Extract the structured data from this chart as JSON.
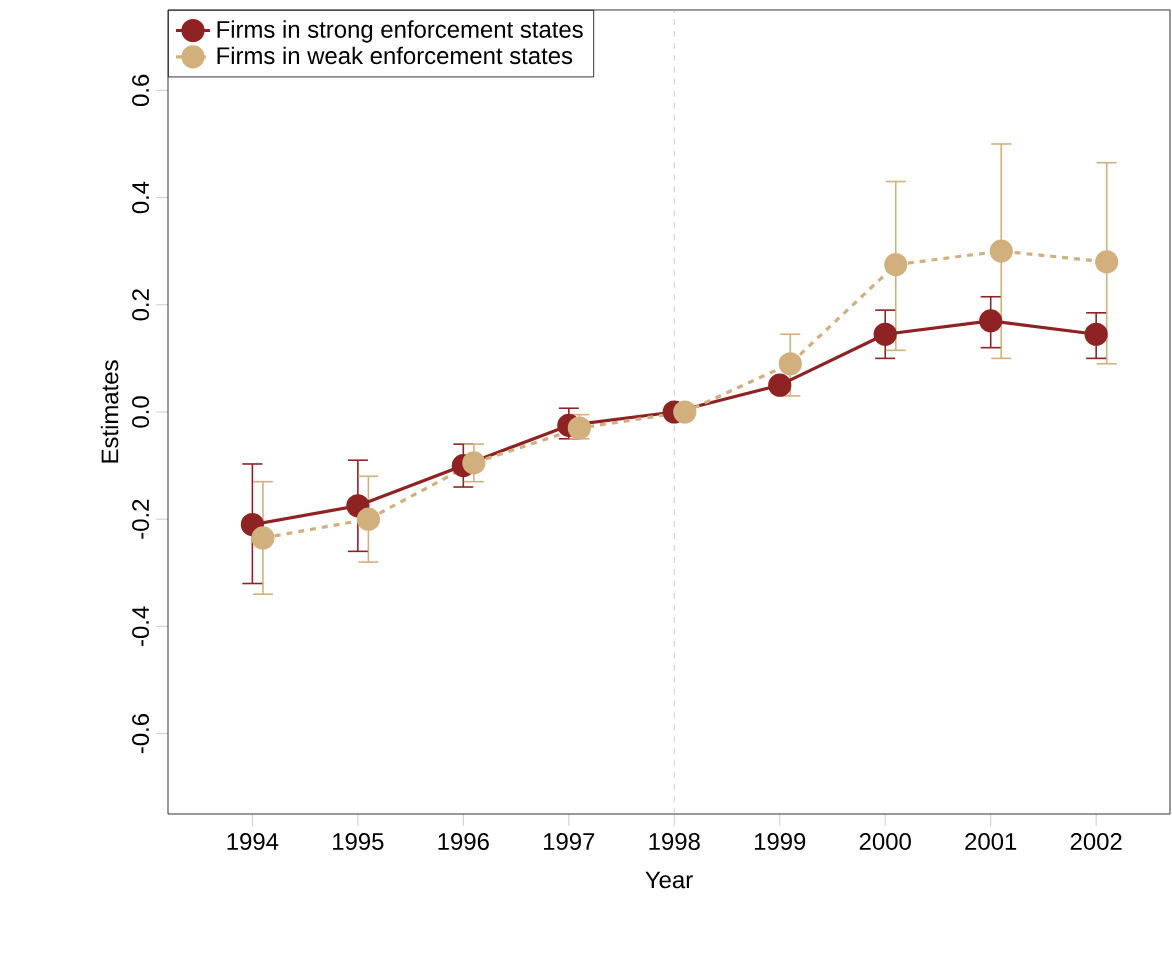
{
  "chart_data": {
    "type": "line",
    "xlabel": "Year",
    "ylabel": "Estimates",
    "x": [
      1994,
      1995,
      1996,
      1997,
      1998,
      1999,
      2000,
      2001,
      2002
    ],
    "series": [
      {
        "name": "Firms in strong enforcement states",
        "color": "#8f2323",
        "line_style": "solid",
        "values": [
          -0.21,
          -0.175,
          -0.1,
          -0.025,
          0,
          0.05,
          0.145,
          0.17,
          0.145
        ],
        "errors": [
          [
            -0.32,
            -0.097
          ],
          [
            -0.26,
            -0.09
          ],
          [
            -0.14,
            -0.06
          ],
          [
            -0.05,
            0.007
          ],
          null,
          null,
          [
            0.1,
            0.19
          ],
          [
            0.12,
            0.215
          ],
          [
            0.1,
            0.185
          ]
        ]
      },
      {
        "name": "Firms in weak enforcement states",
        "color": "#d2b07e",
        "line_style": "dashed",
        "x": [
          1994.1,
          1995.1,
          1996.1,
          1997.1,
          1998.1,
          1999.1,
          2000.1,
          2001.1,
          2002.1
        ],
        "values": [
          -0.235,
          -0.2,
          -0.095,
          -0.03,
          0,
          0.09,
          0.275,
          0.3,
          0.28
        ],
        "errors": [
          [
            -0.34,
            -0.13
          ],
          [
            -0.28,
            -0.12
          ],
          [
            -0.13,
            -0.06
          ],
          [
            -0.05,
            -0.005
          ],
          null,
          [
            0.03,
            0.145
          ],
          [
            0.115,
            0.43
          ],
          [
            0.1,
            0.5
          ],
          [
            0.09,
            0.465
          ]
        ]
      }
    ],
    "marker": "circle",
    "xlim": [
      1993.2,
      2002.7
    ],
    "xticks": [
      1994,
      1995,
      1996,
      1997,
      1998,
      1999,
      2000,
      2001,
      2002
    ],
    "ylim": [
      -0.75,
      0.75
    ],
    "yticks": [
      -0.6,
      -0.4,
      -0.2,
      {
        "value": 0,
        "label": "0.0"
      },
      0.2,
      0.4,
      0.6
    ],
    "ref_lines": [
      {
        "axis": "x",
        "value": 1998,
        "color": "#c0c0c0",
        "line_style": "dashed"
      }
    ],
    "grid": false,
    "legend": "top left"
  }
}
